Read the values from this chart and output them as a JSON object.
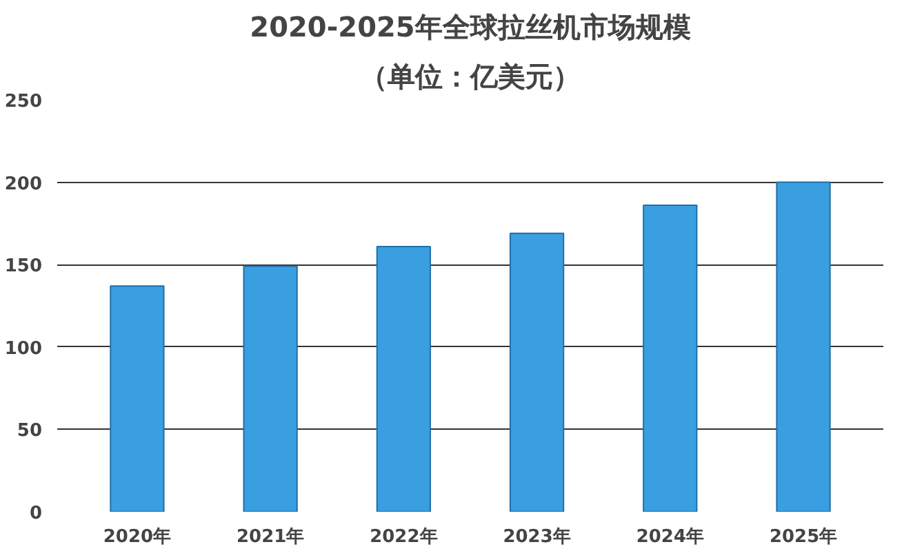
{
  "chart_data": {
    "type": "bar",
    "title": "2020-2025年全球拉丝机市场规模",
    "subtitle": "（单位：亿美元）",
    "categories": [
      "2020年",
      "2021年",
      "2022年",
      "2023年",
      "2024年",
      "2025年"
    ],
    "values": [
      137,
      149,
      161,
      169,
      186,
      200
    ],
    "color": "#3a9fe0",
    "ylim": [
      0,
      250
    ],
    "yticks": [
      0,
      50,
      100,
      150,
      200,
      250
    ],
    "grid": "y"
  }
}
